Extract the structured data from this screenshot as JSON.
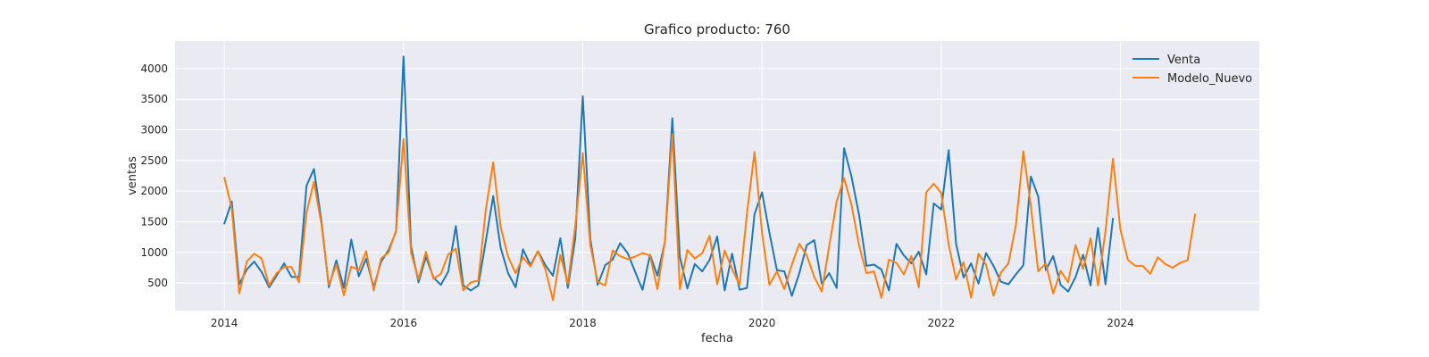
{
  "chart_data": {
    "type": "line",
    "title": "Grafico producto: 760",
    "xlabel": "fecha",
    "ylabel": "ventas",
    "xlim": [
      2013.45,
      2025.55
    ],
    "ylim": [
      50,
      4450
    ],
    "x_ticks": [
      2014,
      2016,
      2018,
      2020,
      2022,
      2024
    ],
    "x_tick_labels": [
      "2014",
      "2016",
      "2018",
      "2020",
      "2022",
      "2024"
    ],
    "y_ticks": [
      500,
      1000,
      1500,
      2000,
      2500,
      3000,
      3500,
      4000
    ],
    "y_tick_labels": [
      "500",
      "1000",
      "1500",
      "2000",
      "2500",
      "3000",
      "3500",
      "4000"
    ],
    "grid": true,
    "legend_position": "top-right",
    "series": [
      {
        "name": "Venta",
        "color": "#1f77b4",
        "start": 2014.0,
        "step": 0.0833333,
        "values": [
          1470,
          1830,
          480,
          720,
          850,
          680,
          430,
          620,
          820,
          600,
          600,
          2090,
          2360,
          1510,
          430,
          870,
          420,
          1210,
          610,
          900,
          430,
          850,
          1040,
          1340,
          4200,
          1100,
          510,
          930,
          590,
          470,
          690,
          1430,
          460,
          380,
          460,
          1170,
          1920,
          1080,
          660,
          430,
          1050,
          790,
          1020,
          790,
          620,
          1230,
          420,
          1230,
          3550,
          1220,
          470,
          790,
          880,
          1150,
          990,
          690,
          390,
          960,
          620,
          1170,
          3190,
          930,
          410,
          810,
          690,
          880,
          1260,
          380,
          980,
          390,
          420,
          1620,
          1980,
          1320,
          710,
          690,
          290,
          660,
          1120,
          1200,
          490,
          660,
          420,
          2700,
          2230,
          1610,
          780,
          800,
          720,
          380,
          1140,
          950,
          820,
          1010,
          640,
          1800,
          1700,
          2670,
          1140,
          590,
          820,
          490,
          990,
          780,
          520,
          480,
          640,
          790,
          2240,
          1910,
          710,
          940,
          470,
          360,
          600,
          960,
          460,
          1400,
          480,
          1550
        ]
      },
      {
        "name": "Modelo_Nuevo",
        "color": "#ff7f0e",
        "start": 2014.0,
        "step": 0.0833333,
        "values": [
          2220,
          1720,
          330,
          850,
          980,
          900,
          460,
          660,
          760,
          760,
          510,
          1650,
          2150,
          1460,
          470,
          800,
          300,
          770,
          710,
          1020,
          380,
          900,
          1000,
          1360,
          2850,
          1000,
          560,
          1010,
          570,
          650,
          970,
          1060,
          380,
          510,
          540,
          1680,
          2470,
          1420,
          930,
          660,
          920,
          770,
          1020,
          720,
          220,
          960,
          490,
          1430,
          2620,
          1120,
          520,
          460,
          1030,
          940,
          890,
          930,
          990,
          950,
          400,
          1180,
          2930,
          400,
          1040,
          900,
          990,
          1270,
          480,
          1030,
          730,
          470,
          1640,
          2640,
          1320,
          470,
          690,
          400,
          800,
          1140,
          950,
          600,
          360,
          1100,
          1830,
          2210,
          1770,
          1110,
          660,
          690,
          260,
          880,
          830,
          640,
          940,
          430,
          1980,
          2120,
          1970,
          1130,
          560,
          840,
          260,
          980,
          800,
          290,
          670,
          820,
          1440,
          2650,
          1760,
          690,
          820,
          330,
          700,
          510,
          1120,
          730,
          1230,
          460,
          1350,
          2530,
          1370,
          880,
          780,
          780,
          650,
          920,
          810,
          750,
          830,
          870,
          1620
        ]
      }
    ]
  }
}
